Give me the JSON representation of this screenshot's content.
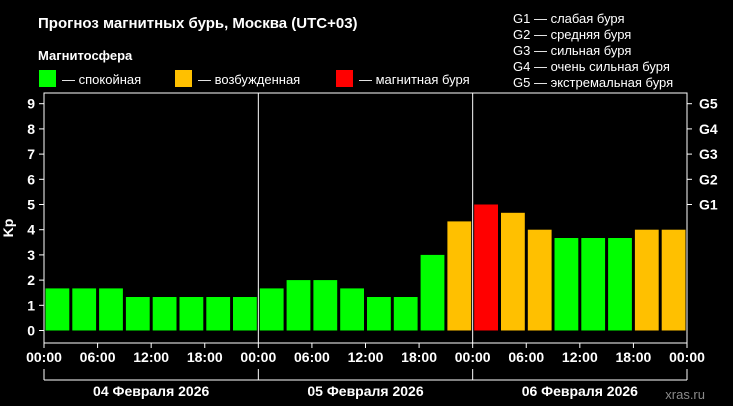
{
  "chart_data": {
    "type": "bar",
    "title": "Прогноз магнитных бурь, Москва (UTC+03)",
    "legend_title": "Магнитосфера",
    "legend": [
      {
        "label": "— спокойная",
        "color": "#00ff00"
      },
      {
        "label": "— возбужденная",
        "color": "#ffc000"
      },
      {
        "label": "— магнитная буря",
        "color": "#ff0000"
      }
    ],
    "g_scale": [
      "G1 — слабая буря",
      "G2 — средняя буря",
      "G3 — сильная буря",
      "G4 — очень сильная буря",
      "G5 — экстремальная буря"
    ],
    "ylabel": "Kp",
    "ylim": [
      0,
      9
    ],
    "yticks": [
      "0",
      "1",
      "2",
      "3",
      "4",
      "5",
      "6",
      "7",
      "8",
      "9"
    ],
    "right_ticks": [
      {
        "label": "G1",
        "value": 5
      },
      {
        "label": "G2",
        "value": 6
      },
      {
        "label": "G3",
        "value": 7
      },
      {
        "label": "G4",
        "value": 8
      },
      {
        "label": "G5",
        "value": 9
      }
    ],
    "xticks": [
      "00:00",
      "06:00",
      "12:00",
      "18:00",
      "00:00",
      "06:00",
      "12:00",
      "18:00",
      "00:00",
      "06:00",
      "12:00",
      "18:00",
      "00:00"
    ],
    "days": [
      "04 Февраля 2026",
      "05 Февраля 2026",
      "06 Февраля 2026"
    ],
    "values": [
      1.67,
      1.67,
      1.67,
      1.33,
      1.33,
      1.33,
      1.33,
      1.33,
      1.67,
      2.0,
      2.0,
      1.67,
      1.33,
      1.33,
      3.0,
      4.33,
      5.0,
      4.67,
      4.0,
      3.67,
      3.67,
      3.67,
      4.0,
      4.0
    ],
    "colors": {
      "quiet": "#00ff00",
      "active": "#ffc000",
      "storm": "#ff0000"
    },
    "grid": false
  },
  "watermark": "xras.ru"
}
